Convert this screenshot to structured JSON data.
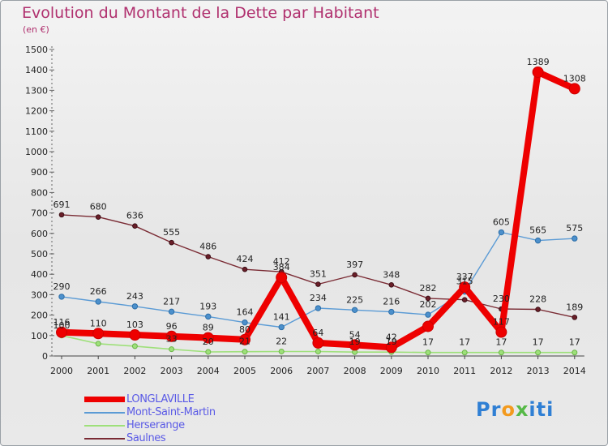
{
  "title": "Evolution du Montant de la Dette par Habitant",
  "unit": "(en €)",
  "logo": {
    "p": "Pr",
    "o": "o",
    "x": "x",
    "i": "iti"
  },
  "chart_data": {
    "type": "line",
    "title": "Evolution du Montant de la Dette par Habitant",
    "ylabel": "(en €)",
    "xlabel": "",
    "ylim": [
      0,
      1500
    ],
    "yticks": [
      0,
      100,
      200,
      300,
      400,
      500,
      600,
      700,
      800,
      900,
      1000,
      1100,
      1200,
      1300,
      1400,
      1500
    ],
    "categories": [
      "2000",
      "2001",
      "2002",
      "2003",
      "2004",
      "2005",
      "2006",
      "2007",
      "2008",
      "2009",
      "2010",
      "2011",
      "2012",
      "2013",
      "2014"
    ],
    "grid": false,
    "legend_position": "bottom-left",
    "series": [
      {
        "name": "Saulnes",
        "color": "#7a2b34",
        "values": [
          691,
          680,
          636,
          555,
          486,
          424,
          412,
          351,
          397,
          348,
          282,
          275,
          230,
          228,
          189
        ],
        "labels": [
          "691",
          "680",
          "636",
          "555",
          "486",
          "424",
          "412",
          "351",
          "397",
          "348",
          "282",
          "",
          "230",
          "228",
          "189"
        ]
      },
      {
        "name": "Mont-Saint-Martin",
        "color": "#5b9bd5",
        "values": [
          290,
          266,
          243,
          217,
          193,
          164,
          141,
          234,
          225,
          216,
          202,
          315,
          605,
          565,
          575
        ],
        "labels": [
          "290",
          "266",
          "243",
          "217",
          "193",
          "164",
          "141",
          "234",
          "225",
          "216",
          "202",
          "315",
          "605",
          "565",
          "575"
        ]
      },
      {
        "name": "Herserange",
        "color": "#9ee07a",
        "values": [
          100,
          60,
          48,
          33,
          20,
          21,
          22,
          22,
          19,
          19,
          17,
          17,
          17,
          17,
          17
        ],
        "labels": [
          "100",
          "",
          "",
          "33",
          "20",
          "21",
          "22",
          "",
          "19",
          "19",
          "17",
          "17",
          "17",
          "17",
          "17"
        ]
      },
      {
        "name": "LONGLAVILLE",
        "color": "#ee0000",
        "values": [
          116,
          110,
          103,
          96,
          89,
          80,
          384,
          64,
          54,
          42,
          145,
          337,
          117,
          1389,
          1308
        ],
        "labels": [
          "116",
          "110",
          "103",
          "96",
          "89",
          "80",
          "384",
          "64",
          "54",
          "42",
          "",
          "337",
          "117",
          "1389",
          "1308"
        ]
      }
    ],
    "legend_order": [
      "LONGLAVILLE",
      "Mont-Saint-Martin",
      "Herserange",
      "Saulnes"
    ]
  }
}
